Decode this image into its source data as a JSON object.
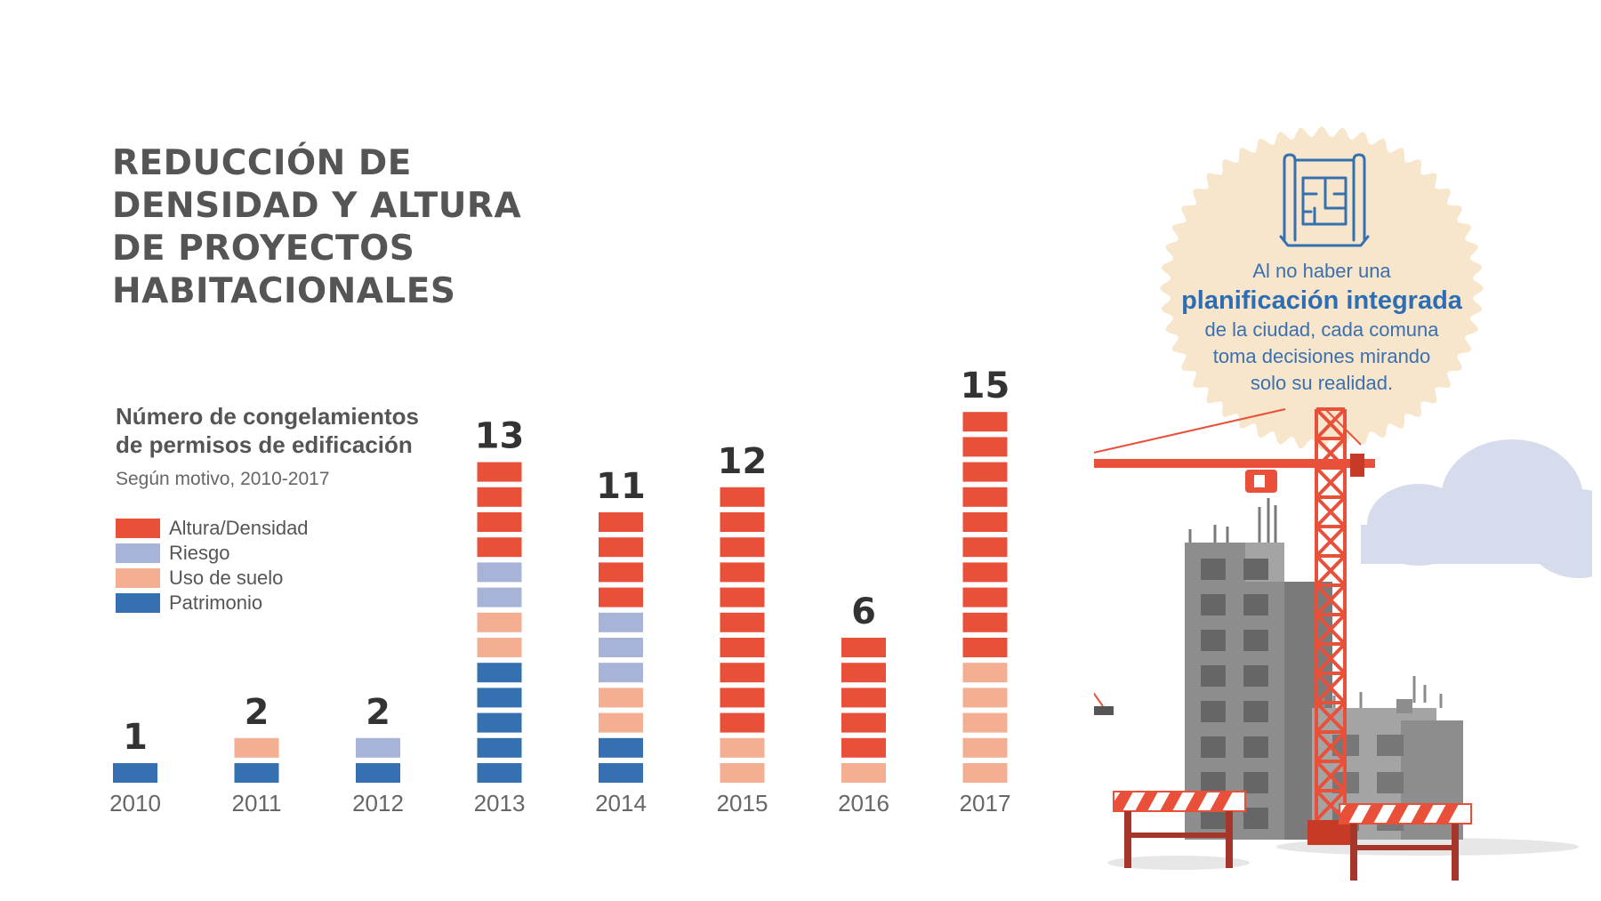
{
  "title_lines": [
    "REDUCCIÓN DE",
    "DENSIDAD Y ALTURA",
    "DE PROYECTOS",
    "HABITACIONALES"
  ],
  "subtitle_lines": [
    "Número de congelamientos",
    "de permisos de edificación"
  ],
  "caption": "Según motivo, 2010-2017",
  "callout": {
    "line1": "Al no haber una",
    "highlight": "planificación integrada",
    "line2": "de la ciudad, cada comuna",
    "line3": "toma decisiones mirando",
    "line4": "solo su realidad."
  },
  "icons": [
    "blueprint-icon",
    "crane-illustration",
    "building-illustration",
    "barrier-illustration",
    "cloud-illustration"
  ],
  "colors": {
    "altura_densidad": "#e8503a",
    "riesgo": "#a7b4d8",
    "uso_de_suelo": "#f4ae92",
    "patrimonio": "#3570b0",
    "title": "#555555",
    "callout_bg": "#f7e6cb",
    "callout_text": "#2d6db3"
  },
  "chart_data": {
    "type": "bar",
    "stacked": true,
    "categories": [
      "2010",
      "2011",
      "2012",
      "2013",
      "2014",
      "2015",
      "2016",
      "2017"
    ],
    "series": [
      {
        "name": "Patrimonio",
        "color": "#3570b0",
        "values": [
          1,
          1,
          1,
          5,
          2,
          0,
          0,
          0
        ]
      },
      {
        "name": "Uso de suelo",
        "color": "#f4ae92",
        "values": [
          0,
          1,
          0,
          2,
          2,
          2,
          1,
          5
        ]
      },
      {
        "name": "Riesgo",
        "color": "#a7b4d8",
        "values": [
          0,
          0,
          1,
          2,
          3,
          0,
          0,
          0
        ]
      },
      {
        "name": "Altura/Densidad",
        "color": "#e8503a",
        "values": [
          0,
          0,
          0,
          4,
          4,
          10,
          5,
          10
        ]
      }
    ],
    "totals": [
      "1",
      "2",
      "2",
      "13",
      "11",
      "12",
      "6",
      "15"
    ],
    "legend": [
      "Altura/Densidad",
      "Riesgo",
      "Uso de suelo",
      "Patrimonio"
    ],
    "legend_colors": [
      "#e8503a",
      "#a7b4d8",
      "#f4ae92",
      "#3570b0"
    ],
    "ylim": [
      0,
      15
    ],
    "grid": false,
    "legend_position": "left"
  }
}
